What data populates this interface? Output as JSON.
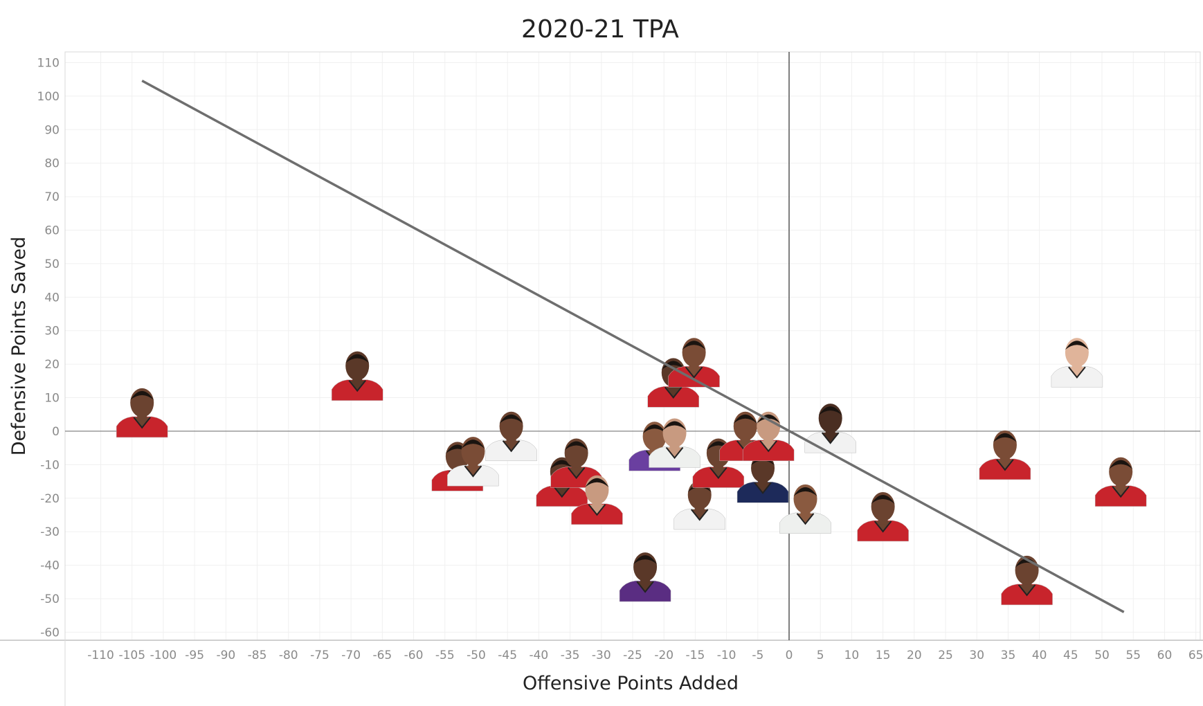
{
  "chart_data": {
    "type": "scatter",
    "title": "2020-21 TPA",
    "xlabel": "Offensive Points Added",
    "ylabel": "Defensive Points Saved",
    "xlim": [
      -115.7,
      65.7
    ],
    "ylim": [
      -62.4,
      113.2
    ],
    "xticks": [
      -110,
      -105,
      -100,
      -95,
      -90,
      -85,
      -80,
      -75,
      -70,
      -65,
      -60,
      -55,
      -50,
      -45,
      -40,
      -35,
      -30,
      -25,
      -20,
      -15,
      -10,
      -5,
      0,
      5,
      10,
      15,
      20,
      25,
      30,
      35,
      40,
      45,
      50,
      55,
      60,
      65
    ],
    "yticks": [
      110,
      100,
      90,
      80,
      70,
      60,
      50,
      40,
      30,
      20,
      10,
      0,
      -10,
      -20,
      -30,
      -40,
      -50,
      -60
    ],
    "grid": true,
    "reference_lines": {
      "x": 0,
      "y": 0
    },
    "trend_line": {
      "x": [
        -103.4,
        53.5
      ],
      "y": [
        104.6,
        -54
      ]
    },
    "marker": "player-headshot",
    "points": [
      {
        "x": -103.4,
        "y": 6,
        "jersey": "#c8242c",
        "skin": "#6b4330"
      },
      {
        "x": -69,
        "y": 17,
        "jersey": "#c8242c",
        "skin": "#5a3828"
      },
      {
        "x": -53,
        "y": -10,
        "jersey": "#c8242c",
        "skin": "#6b4330"
      },
      {
        "x": -50.5,
        "y": -8.5,
        "jersey": "#f2f2f2",
        "skin": "#7a4c36"
      },
      {
        "x": -44.4,
        "y": -1,
        "jersey": "#f2f2f2",
        "skin": "#6b4330"
      },
      {
        "x": -36.3,
        "y": -14.6,
        "jersey": "#c8242c",
        "skin": "#5a3828"
      },
      {
        "x": -34,
        "y": -9,
        "jersey": "#c8242c",
        "skin": "#6b4330"
      },
      {
        "x": -30.7,
        "y": -20,
        "jersey": "#c8242c",
        "skin": "#c89a80"
      },
      {
        "x": -23,
        "y": -43,
        "jersey": "#5a2d82",
        "skin": "#5a3828"
      },
      {
        "x": -18.5,
        "y": 15,
        "jersey": "#c8242c",
        "skin": "#5a3828"
      },
      {
        "x": -15.2,
        "y": 21,
        "jersey": "#c8242c",
        "skin": "#7a4c36"
      },
      {
        "x": -21.5,
        "y": -4,
        "jersey": "#6a3fa0",
        "skin": "#8a5a40"
      },
      {
        "x": -18.3,
        "y": -3,
        "jersey": "#eef0ee",
        "skin": "#c89a80"
      },
      {
        "x": -14.3,
        "y": -21.5,
        "jersey": "#f2f2f2",
        "skin": "#6b4330"
      },
      {
        "x": -11.3,
        "y": -9,
        "jersey": "#c8242c",
        "skin": "#6b4330"
      },
      {
        "x": -7,
        "y": -1,
        "jersey": "#c8242c",
        "skin": "#7a4c36"
      },
      {
        "x": -4.2,
        "y": -13.5,
        "jersey": "#1d2a5a",
        "skin": "#5a3828"
      },
      {
        "x": -3.3,
        "y": -1,
        "jersey": "#c8242c",
        "skin": "#c89a80"
      },
      {
        "x": 2.6,
        "y": -22.7,
        "jersey": "#eef0ee",
        "skin": "#8a5a40"
      },
      {
        "x": 6.6,
        "y": 1.4,
        "jersey": "#f2f2f2",
        "skin": "#4a2e22"
      },
      {
        "x": 15,
        "y": -25,
        "jersey": "#c8242c",
        "skin": "#6b4330"
      },
      {
        "x": 34.5,
        "y": -6.6,
        "jersey": "#c8242c",
        "skin": "#7a4c36"
      },
      {
        "x": 38,
        "y": -44,
        "jersey": "#c8242c",
        "skin": "#6b4330"
      },
      {
        "x": 46,
        "y": 21,
        "jersey": "#f2f2f2",
        "skin": "#e0b49a"
      },
      {
        "x": 53,
        "y": -14.6,
        "jersey": "#c8242c",
        "skin": "#7a4c36"
      }
    ]
  }
}
